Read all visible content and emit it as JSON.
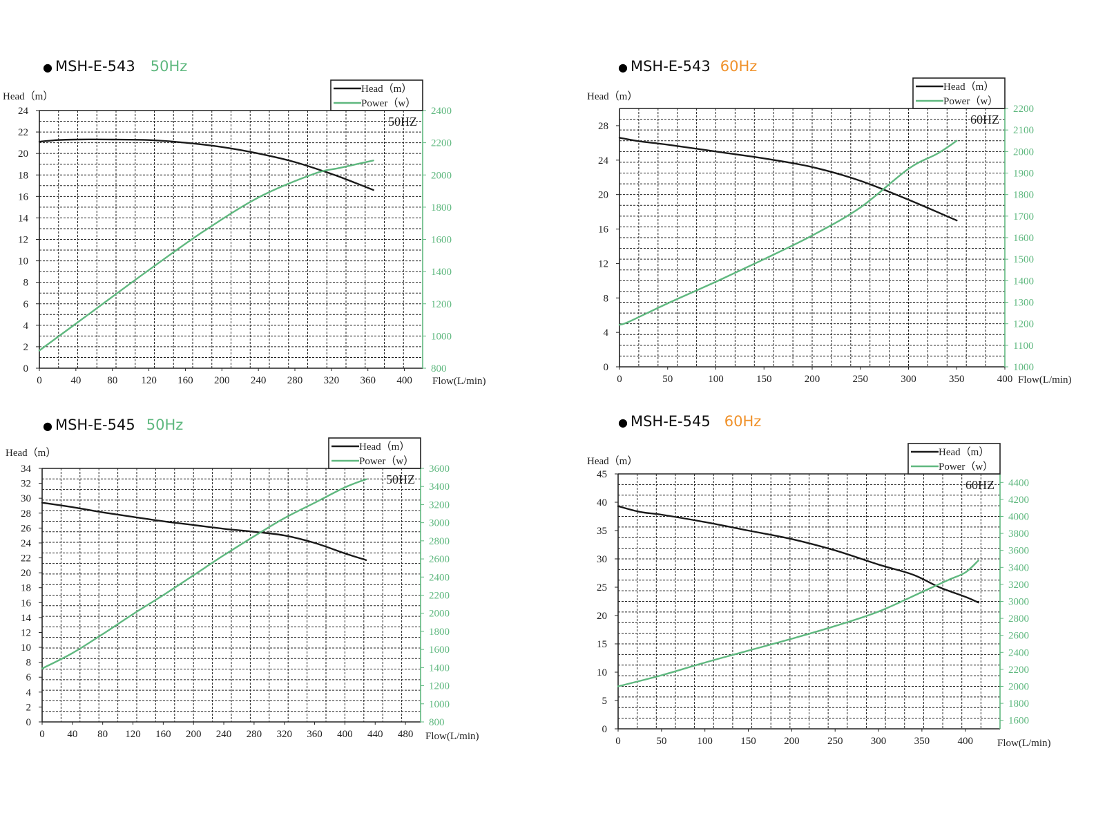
{
  "colors": {
    "head": "#1a1a1a",
    "power": "#5fb87f",
    "freq_50": "#5fb87f",
    "freq_60": "#f0922b",
    "grid": "#222222"
  },
  "chart_data": [
    {
      "type": "line",
      "model": "MSH-E-543",
      "frequency": "50Hz",
      "freq_key": "50",
      "inner_label": "50HZ",
      "ylabel": "Head（m）",
      "xlabel": "Flow(L/min)",
      "legend": [
        "Head（m）",
        "Power（w）"
      ],
      "legend_position": "top-right",
      "grid": true,
      "xlim": [
        0,
        420
      ],
      "xticks": [
        0,
        40,
        80,
        120,
        160,
        200,
        240,
        280,
        320,
        360,
        400
      ],
      "ylim": [
        0,
        24
      ],
      "yticks": [
        0,
        2,
        4,
        6,
        8,
        10,
        12,
        14,
        16,
        18,
        20,
        22,
        24
      ],
      "y2lim": [
        800,
        2400
      ],
      "y2ticks": [
        800,
        1000,
        1200,
        1400,
        1600,
        1800,
        2000,
        2200,
        2400
      ],
      "series": [
        {
          "name": "Head（m）",
          "axis": "left",
          "x": [
            0,
            20,
            40,
            80,
            120,
            160,
            200,
            240,
            280,
            320,
            345,
            366
          ],
          "y": [
            21.1,
            21.25,
            21.3,
            21.3,
            21.25,
            21.0,
            20.6,
            20.0,
            19.2,
            18.1,
            17.3,
            16.6
          ]
        },
        {
          "name": "Power（w）",
          "axis": "right",
          "x": [
            0,
            60,
            120,
            180,
            240,
            300,
            330,
            366
          ],
          "y": [
            910,
            1160,
            1410,
            1650,
            1860,
            2005,
            2045,
            2090
          ]
        }
      ]
    },
    {
      "type": "line",
      "model": "MSH-E-543",
      "frequency": "60Hz",
      "freq_key": "60",
      "inner_label": "60HZ",
      "ylabel": "Head（m）",
      "xlabel": "Flow(L/min)",
      "legend": [
        "Head（m）",
        "Power（w）"
      ],
      "legend_position": "top-right",
      "grid": true,
      "xlim": [
        0,
        400
      ],
      "xticks": [
        0,
        50,
        100,
        150,
        200,
        250,
        300,
        350,
        400
      ],
      "ylim": [
        0,
        30
      ],
      "yticks": [
        0,
        4,
        8,
        12,
        16,
        20,
        24,
        28
      ],
      "y2lim": [
        1000,
        2200
      ],
      "y2ticks": [
        1000,
        1100,
        1200,
        1300,
        1400,
        1500,
        1600,
        1700,
        1800,
        1900,
        2000,
        2100,
        2200
      ],
      "series": [
        {
          "name": "Head（m）",
          "axis": "left",
          "x": [
            0,
            20,
            50,
            100,
            150,
            200,
            250,
            300,
            350
          ],
          "y": [
            26.6,
            26.2,
            25.8,
            25.0,
            24.2,
            23.2,
            21.6,
            19.4,
            17.0
          ]
        },
        {
          "name": "Power（w）",
          "axis": "right",
          "x": [
            0,
            10,
            50,
            100,
            150,
            200,
            250,
            300,
            330,
            350
          ],
          "y": [
            1195,
            1210,
            1295,
            1395,
            1500,
            1610,
            1740,
            1920,
            1990,
            2050
          ]
        }
      ]
    },
    {
      "type": "line",
      "model": "MSH-E-545",
      "frequency": "50Hz",
      "freq_key": "50",
      "inner_label": "50HZ",
      "ylabel": "Head（m）",
      "xlabel": "Flow(L/min)",
      "legend": [
        "Head（m）",
        "Power（w）"
      ],
      "legend_position": "top-right",
      "grid": true,
      "xlim": [
        0,
        500
      ],
      "xticks": [
        0,
        40,
        80,
        120,
        160,
        200,
        240,
        280,
        320,
        360,
        400,
        440,
        480
      ],
      "ylim": [
        0,
        34
      ],
      "yticks": [
        0,
        2,
        4,
        6,
        8,
        10,
        12,
        14,
        16,
        18,
        20,
        22,
        24,
        26,
        28,
        30,
        32,
        34
      ],
      "y2lim": [
        800,
        3600
      ],
      "y2ticks": [
        800,
        1000,
        1200,
        1400,
        1600,
        1800,
        2000,
        2200,
        2400,
        2600,
        2800,
        3000,
        3200,
        3400,
        3600
      ],
      "series": [
        {
          "name": "Head（m）",
          "axis": "left",
          "x": [
            0,
            40,
            80,
            120,
            160,
            200,
            240,
            280,
            320,
            360,
            400,
            428
          ],
          "y": [
            29.4,
            28.8,
            28.1,
            27.5,
            26.9,
            26.4,
            25.9,
            25.5,
            25.0,
            24.0,
            22.6,
            21.7
          ]
        },
        {
          "name": "Power（w）",
          "axis": "right",
          "x": [
            0,
            40,
            80,
            120,
            160,
            200,
            240,
            280,
            320,
            360,
            400,
            428
          ],
          "y": [
            1390,
            1560,
            1770,
            1990,
            2200,
            2420,
            2640,
            2850,
            3050,
            3220,
            3390,
            3480
          ]
        }
      ]
    },
    {
      "type": "line",
      "model": "MSH-E-545",
      "frequency": "60Hz",
      "freq_key": "60",
      "inner_label": "60HZ",
      "ylabel": "Head（m）",
      "xlabel": "Flow(L/min)",
      "legend": [
        "Head（m）",
        "Power（w）"
      ],
      "legend_position": "top-right",
      "grid": true,
      "xlim": [
        0,
        440
      ],
      "xticks": [
        0,
        50,
        100,
        150,
        200,
        250,
        300,
        350,
        400
      ],
      "ylim": [
        0,
        45
      ],
      "yticks": [
        0,
        5,
        10,
        15,
        20,
        25,
        30,
        35,
        40,
        45
      ],
      "y2lim": [
        1500,
        4500
      ],
      "y2ticks": [
        1600,
        1800,
        2000,
        2200,
        2400,
        2600,
        2800,
        3000,
        3200,
        3400,
        3600,
        3800,
        4000,
        4200,
        4400
      ],
      "series": [
        {
          "name": "Head（m）",
          "axis": "left",
          "x": [
            0,
            25,
            50,
            100,
            150,
            200,
            250,
            300,
            340,
            370,
            400,
            415
          ],
          "y": [
            39.3,
            38.3,
            37.8,
            36.5,
            35.0,
            33.5,
            31.5,
            29.0,
            27.2,
            25.0,
            23.3,
            22.3
          ]
        },
        {
          "name": "Power（w）",
          "axis": "right",
          "x": [
            0,
            50,
            100,
            150,
            200,
            250,
            300,
            350,
            380,
            400,
            415
          ],
          "y": [
            2000,
            2130,
            2280,
            2420,
            2560,
            2710,
            2880,
            3110,
            3250,
            3340,
            3480
          ]
        }
      ]
    }
  ]
}
